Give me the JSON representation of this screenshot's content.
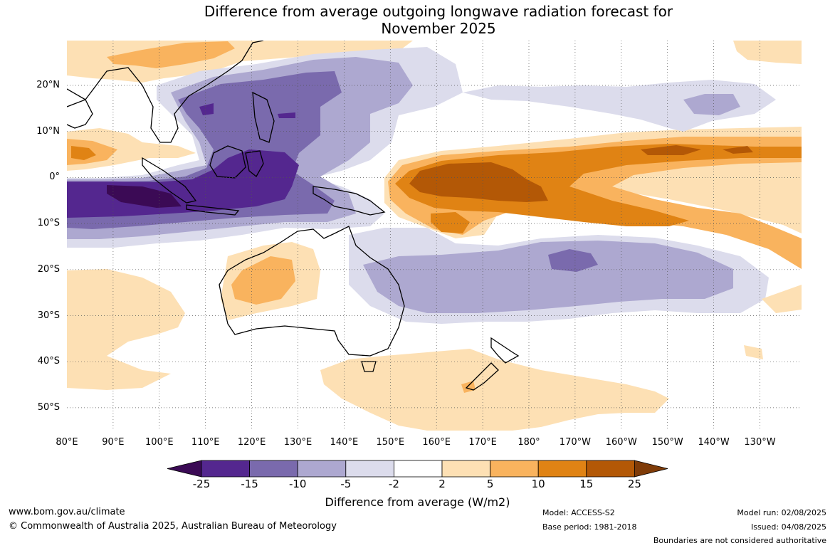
{
  "title_line1": "Difference from average outgoing longwave radiation forecast for",
  "title_line2": "November 2025",
  "lat_labels": [
    "20°N",
    "10°N",
    "0°",
    "10°S",
    "20°S",
    "30°S",
    "40°S",
    "50°S"
  ],
  "lon_labels": [
    "80°E",
    "90°E",
    "100°E",
    "110°E",
    "120°E",
    "130°E",
    "140°E",
    "150°E",
    "160°E",
    "170°E",
    "180°",
    "170°W",
    "160°W",
    "150°W",
    "140°W",
    "130°W"
  ],
  "colorbar": {
    "ticks": [
      "-25",
      "-15",
      "-10",
      "-5",
      "-2",
      "2",
      "5",
      "10",
      "15",
      "25"
    ],
    "colors": [
      "#3b0a55",
      "#54278f",
      "#7a6aad",
      "#ada8d0",
      "#dcdcec",
      "#ffffff",
      "#fde0b4",
      "#f9b35e",
      "#e08314",
      "#b35806",
      "#7f3b08"
    ],
    "label": "Difference from average (W/m2)"
  },
  "footer": {
    "url": "www.bom.gov.au/climate",
    "copyright": "© Commonwealth of Australia 2025, Australian Bureau of Meteorology",
    "model": "Model: ACCESS-S2",
    "base_period": "Base period: 1981-2018",
    "model_run": "Model run: 02/08/2025",
    "issued": "Issued: 04/08/2025",
    "disclaimer": "Boundaries are not considered authoritative"
  }
}
